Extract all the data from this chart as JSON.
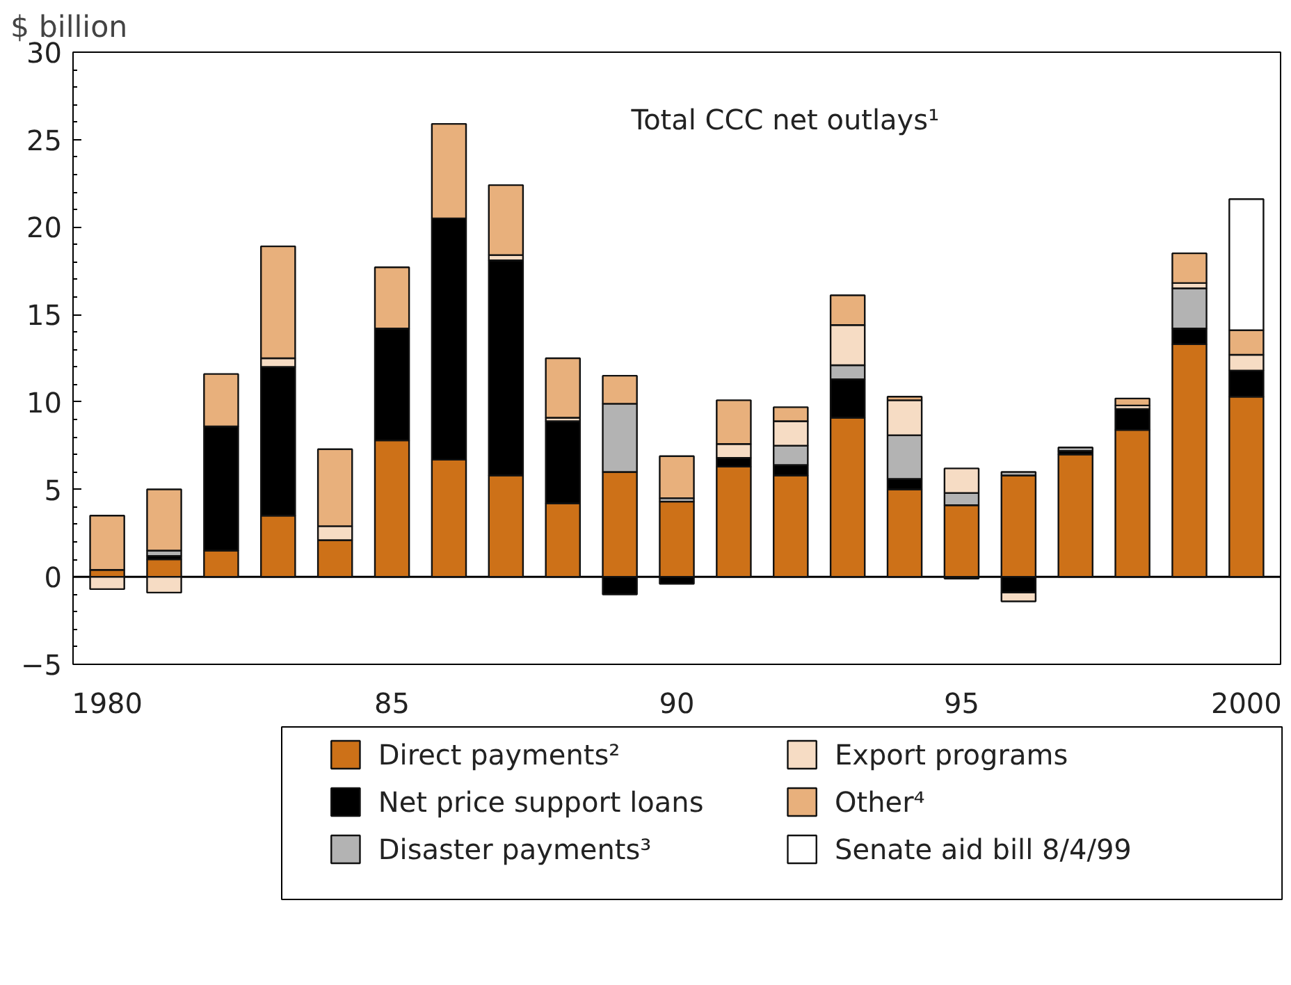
{
  "chart_data": {
    "type": "bar",
    "stacked": true,
    "ylabel": "$ billion",
    "annotations": [
      "Total CCC net outlays¹"
    ],
    "x": [
      1980,
      1981,
      1982,
      1983,
      1984,
      1985,
      1986,
      1987,
      1988,
      1989,
      1990,
      1991,
      1992,
      1993,
      1994,
      1995,
      1996,
      1997,
      1998,
      1999,
      2000
    ],
    "xlim": [
      1979.4,
      2000.6
    ],
    "xticks": [
      1980,
      {
        "value": 1985,
        "label": "85"
      },
      {
        "value": 1990,
        "label": "90"
      },
      {
        "value": 1995,
        "label": "95"
      },
      2000
    ],
    "ylim": [
      -5,
      30
    ],
    "yticks": [
      -5,
      0,
      5,
      10,
      15,
      20,
      25,
      30
    ],
    "ref_lines": [
      {
        "axis": "y",
        "value": 0
      }
    ],
    "grid": false,
    "legend": "bottom",
    "series": [
      {
        "name": "Direct payments²",
        "color": "#cd7118",
        "values": [
          0.4,
          1.0,
          1.5,
          3.5,
          2.1,
          7.8,
          6.7,
          5.8,
          4.2,
          6.0,
          4.3,
          6.3,
          5.8,
          9.1,
          5.0,
          4.1,
          5.8,
          7.0,
          8.4,
          13.3,
          10.3
        ]
      },
      {
        "name": "Net price support loans",
        "color": "#000000",
        "values": [
          null,
          0.2,
          7.1,
          8.5,
          null,
          6.4,
          13.8,
          12.3,
          4.7,
          -1.0,
          -0.4,
          0.5,
          0.6,
          2.2,
          0.6,
          -0.1,
          -0.9,
          0.2,
          1.2,
          0.9,
          1.5
        ]
      },
      {
        "name": "Disaster payments³",
        "color": "#b3b3b3",
        "values": [
          null,
          0.3,
          null,
          null,
          null,
          null,
          null,
          null,
          null,
          3.9,
          0.2,
          null,
          1.1,
          0.8,
          2.5,
          0.7,
          0.2,
          0.2,
          null,
          2.3,
          null
        ]
      },
      {
        "name": "Export  programs",
        "color": "#f6dcc4",
        "values": [
          -0.7,
          -0.9,
          null,
          0.5,
          0.8,
          null,
          null,
          0.3,
          0.2,
          null,
          null,
          0.8,
          1.4,
          2.3,
          2.0,
          1.4,
          -0.5,
          null,
          0.2,
          0.3,
          0.9
        ]
      },
      {
        "name": "Other⁴",
        "color": "#e8b07c",
        "values": [
          3.1,
          3.5,
          3.0,
          6.4,
          4.4,
          3.5,
          5.4,
          4.0,
          3.4,
          1.6,
          2.4,
          2.5,
          0.8,
          1.7,
          0.2,
          null,
          null,
          null,
          0.4,
          1.7,
          1.4
        ]
      },
      {
        "name": "Senate aid bill 8/4/99",
        "color": "#ffffff",
        "values": [
          null,
          null,
          null,
          null,
          null,
          null,
          null,
          null,
          null,
          null,
          null,
          null,
          null,
          null,
          null,
          null,
          null,
          null,
          null,
          null,
          7.5
        ]
      }
    ]
  }
}
